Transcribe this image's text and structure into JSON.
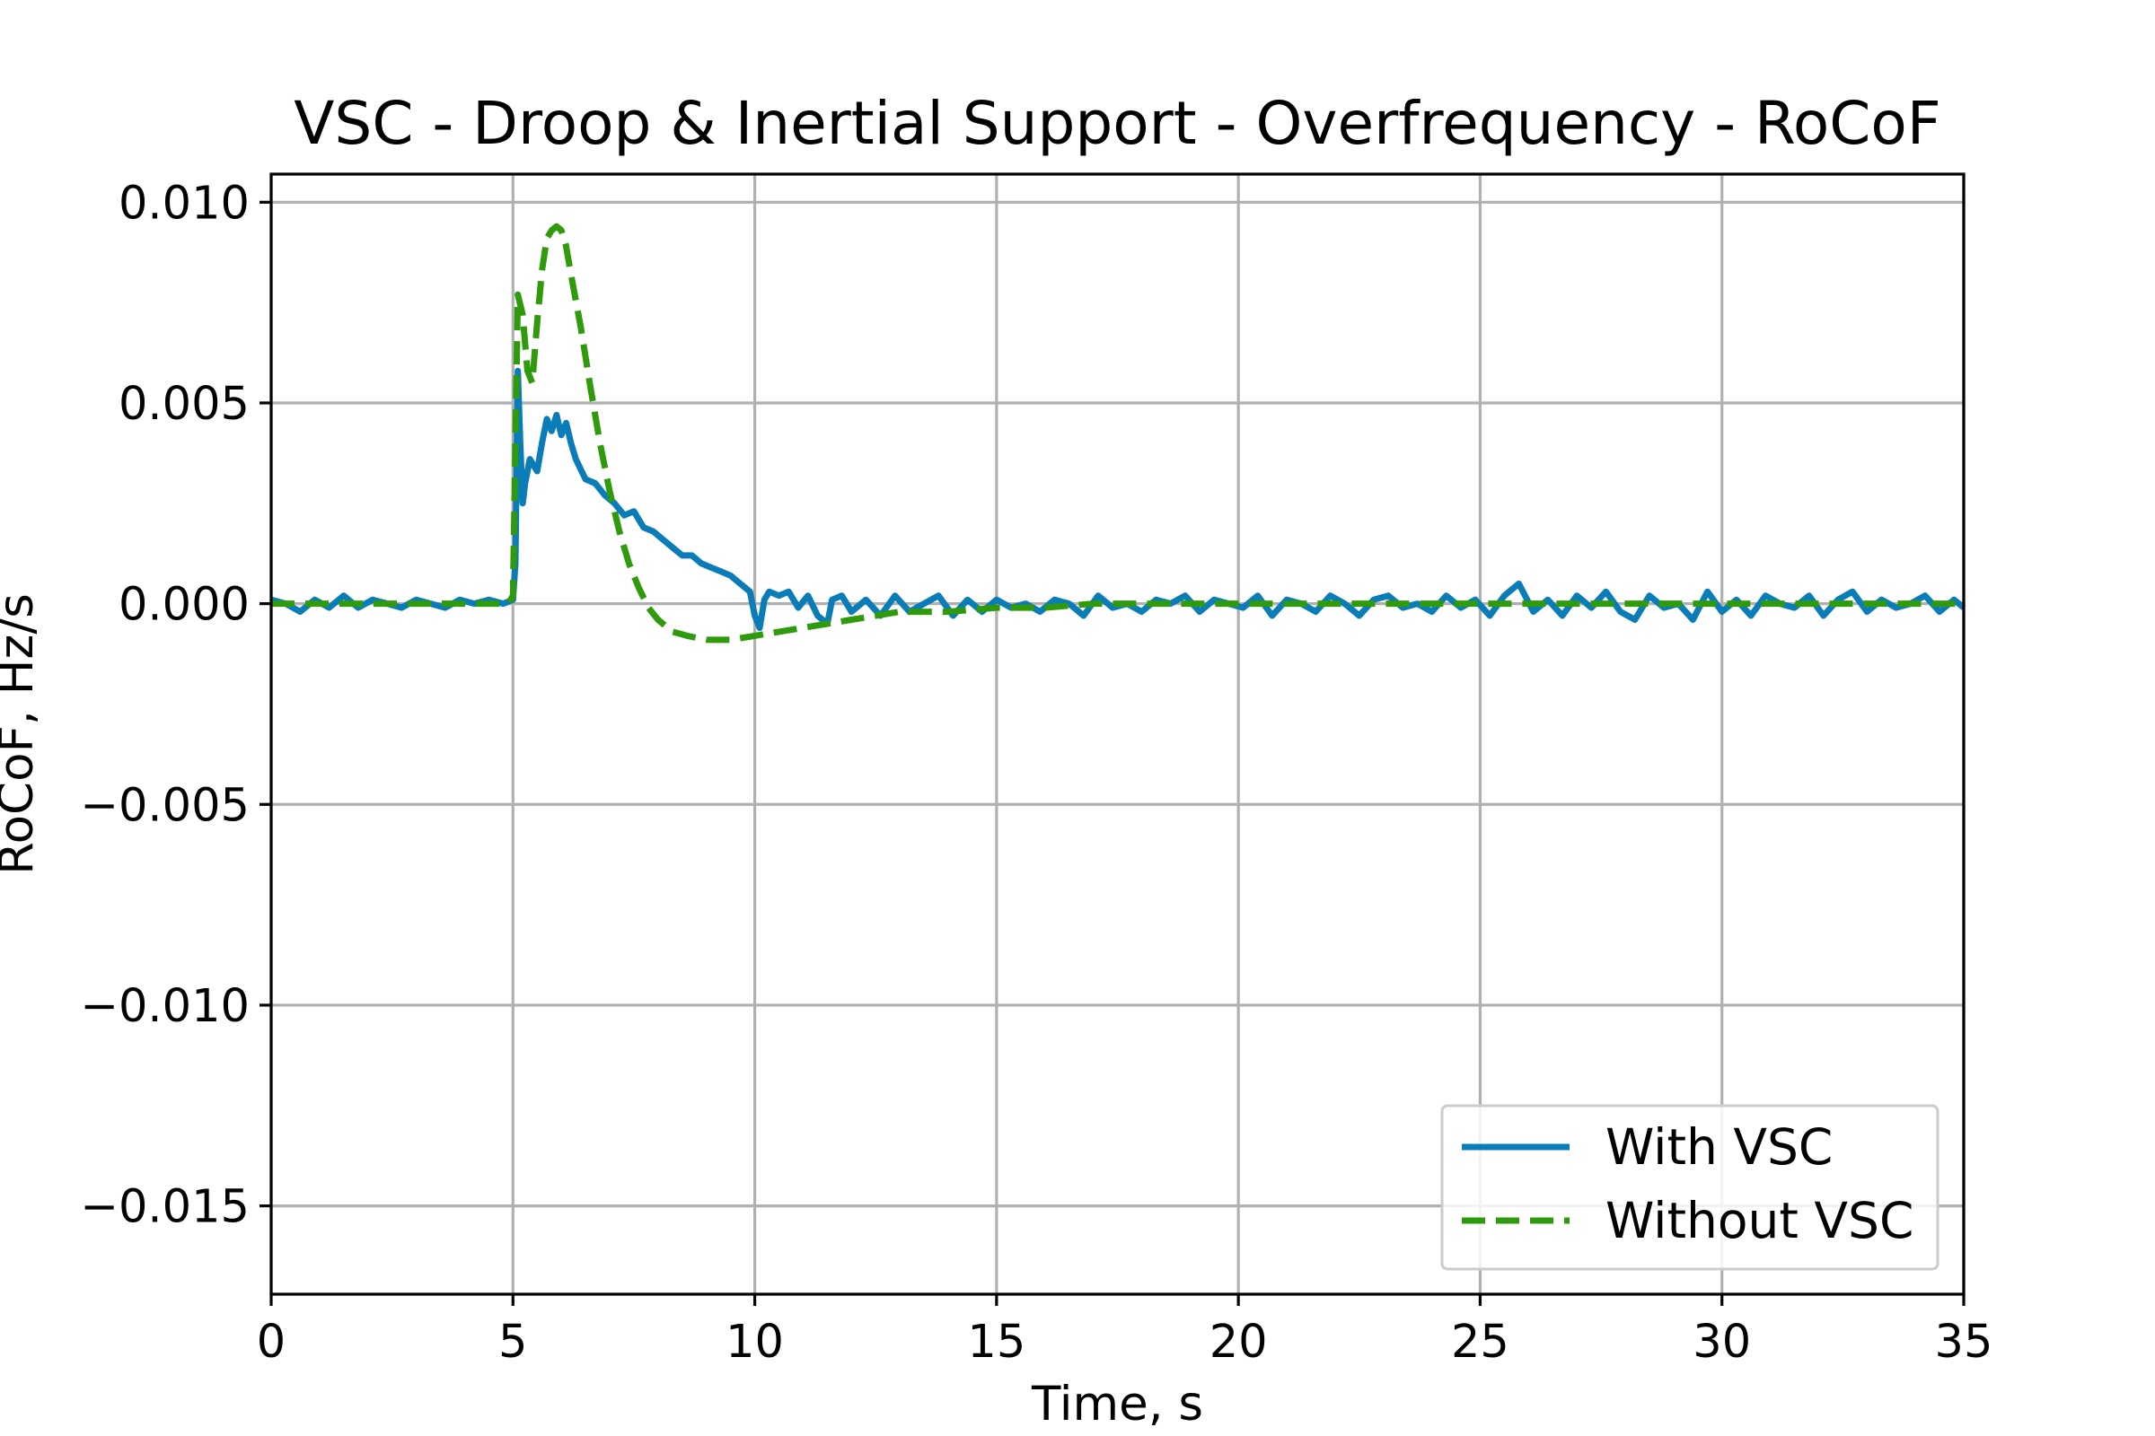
{
  "chart_data": {
    "type": "line",
    "title": "VSC - Droop & Inertial Support - Overfrequency - RoCoF",
    "xlabel": "Time, s",
    "ylabel": "RoCoF, Hz/s",
    "xlim": [
      0,
      35
    ],
    "ylim": [
      -0.0172,
      0.0107
    ],
    "xticks": [
      0,
      5,
      10,
      15,
      20,
      25,
      30,
      35
    ],
    "xtick_labels": [
      "0",
      "5",
      "10",
      "15",
      "20",
      "25",
      "30",
      "35"
    ],
    "yticks": [
      0.01,
      0.005,
      0.0,
      -0.005,
      -0.01,
      -0.015
    ],
    "ytick_labels": [
      "0.010",
      "0.005",
      "0.000",
      "−0.005",
      "−0.010",
      "−0.015"
    ],
    "grid": true,
    "legend_position": "lower right",
    "series": [
      {
        "name": "With VSC",
        "color": "#0a7db8",
        "style": "solid",
        "x": [
          0,
          0.3,
          0.6,
          0.9,
          1.2,
          1.5,
          1.8,
          2.1,
          2.4,
          2.7,
          3.0,
          3.3,
          3.6,
          3.9,
          4.2,
          4.5,
          4.8,
          5.0,
          5.05,
          5.1,
          5.15,
          5.2,
          5.25,
          5.35,
          5.5,
          5.6,
          5.7,
          5.8,
          5.9,
          6.0,
          6.1,
          6.2,
          6.3,
          6.5,
          6.7,
          6.9,
          7.1,
          7.3,
          7.5,
          7.7,
          7.9,
          8.1,
          8.3,
          8.5,
          8.7,
          8.9,
          9.1,
          9.3,
          9.5,
          9.7,
          9.9,
          10.0,
          10.1,
          10.2,
          10.3,
          10.5,
          10.7,
          10.9,
          11.1,
          11.3,
          11.5,
          11.6,
          11.8,
          12.0,
          12.3,
          12.6,
          12.9,
          13.2,
          13.5,
          13.8,
          14.1,
          14.4,
          14.7,
          15.0,
          15.3,
          15.6,
          15.9,
          16.2,
          16.5,
          16.8,
          17.1,
          17.4,
          17.7,
          18.0,
          18.3,
          18.6,
          18.9,
          19.2,
          19.5,
          19.8,
          20.1,
          20.4,
          20.7,
          21.0,
          21.3,
          21.6,
          21.9,
          22.2,
          22.5,
          22.8,
          23.1,
          23.4,
          23.7,
          24.0,
          24.3,
          24.6,
          24.9,
          25.2,
          25.5,
          25.8,
          26.1,
          26.4,
          26.7,
          27.0,
          27.3,
          27.6,
          27.9,
          28.2,
          28.5,
          28.8,
          29.1,
          29.4,
          29.7,
          30.0,
          30.3,
          30.6,
          30.9,
          31.2,
          31.5,
          31.8,
          32.1,
          32.4,
          32.7,
          33.0,
          33.3,
          33.6,
          33.9,
          34.2,
          34.5,
          34.8,
          35.0
        ],
        "y": [
          0.0001,
          0.0,
          -0.0002,
          0.0001,
          -0.0001,
          0.0002,
          -0.0001,
          0.0001,
          0.0,
          -0.0001,
          0.0001,
          0.0,
          -0.0001,
          0.0001,
          0.0,
          0.0001,
          0.0,
          0.0001,
          0.001,
          0.0058,
          0.004,
          0.0025,
          0.003,
          0.0036,
          0.0033,
          0.004,
          0.0046,
          0.0043,
          0.0047,
          0.0042,
          0.0045,
          0.004,
          0.0036,
          0.0031,
          0.003,
          0.0027,
          0.0025,
          0.0022,
          0.0023,
          0.0019,
          0.0018,
          0.0016,
          0.0014,
          0.0012,
          0.0012,
          0.001,
          0.0009,
          0.0008,
          0.0007,
          0.0005,
          0.0003,
          -0.0003,
          -0.0006,
          0.0001,
          0.0003,
          0.0002,
          0.0003,
          -0.0001,
          0.0002,
          -0.0003,
          -0.0005,
          0.0001,
          0.0002,
          -0.0002,
          0.0001,
          -0.0003,
          0.0002,
          -0.0002,
          0.0,
          0.0002,
          -0.0003,
          0.0001,
          -0.0002,
          0.0001,
          -0.0001,
          0.0,
          -0.0002,
          0.0001,
          0.0,
          -0.0003,
          0.0002,
          -0.0001,
          0.0,
          -0.0002,
          0.0001,
          0.0,
          0.0002,
          -0.0002,
          0.0001,
          0.0,
          -0.0001,
          0.0002,
          -0.0003,
          0.0001,
          0.0,
          -0.0002,
          0.0002,
          0.0,
          -0.0003,
          0.0001,
          0.0002,
          -0.0001,
          0.0,
          -0.0002,
          0.0002,
          -0.0001,
          0.0001,
          -0.0003,
          0.0002,
          0.0005,
          -0.0002,
          0.0001,
          -0.0003,
          0.0002,
          -0.0001,
          0.0003,
          -0.0002,
          -0.0004,
          0.0002,
          -0.0001,
          0.0,
          -0.0004,
          0.0003,
          -0.0002,
          0.0001,
          -0.0003,
          0.0002,
          0.0,
          -0.0001,
          0.0002,
          -0.0003,
          0.0001,
          0.0003,
          -0.0002,
          0.0001,
          -0.0001,
          0.0,
          0.0002,
          -0.0002,
          0.0001,
          -0.0001
        ]
      },
      {
        "name": "Without VSC",
        "color": "#2e9a0c",
        "style": "dashed",
        "x": [
          0,
          1,
          2,
          3,
          4,
          4.9,
          5.0,
          5.05,
          5.1,
          5.2,
          5.3,
          5.4,
          5.5,
          5.6,
          5.7,
          5.8,
          5.9,
          6.0,
          6.1,
          6.2,
          6.4,
          6.6,
          6.8,
          7.0,
          7.2,
          7.4,
          7.6,
          7.8,
          8.0,
          8.3,
          8.6,
          9.0,
          9.5,
          10.0,
          10.5,
          11.0,
          11.5,
          12.0,
          12.5,
          13.0,
          14.0,
          15.0,
          16.0,
          17.0,
          18.0,
          20.0,
          22.0,
          25.0,
          28.0,
          30.0,
          32.0,
          35.0
        ],
        "y": [
          0.0,
          0.0,
          0.0,
          0.0,
          0.0,
          0.0,
          0.0002,
          0.004,
          0.0077,
          0.0072,
          0.0058,
          0.0055,
          0.007,
          0.0083,
          0.0091,
          0.0093,
          0.0094,
          0.0093,
          0.0089,
          0.0082,
          0.0069,
          0.0054,
          0.004,
          0.0028,
          0.0018,
          0.001,
          0.0004,
          -0.0001,
          -0.0004,
          -0.0007,
          -0.0008,
          -0.0009,
          -0.0009,
          -0.0008,
          -0.0007,
          -0.0006,
          -0.0005,
          -0.0004,
          -0.0003,
          -0.0002,
          -0.0002,
          -0.0001,
          -0.0001,
          0.0,
          0.0,
          0.0,
          0.0,
          0.0,
          0.0,
          0.0,
          0.0,
          0.0
        ]
      }
    ]
  }
}
